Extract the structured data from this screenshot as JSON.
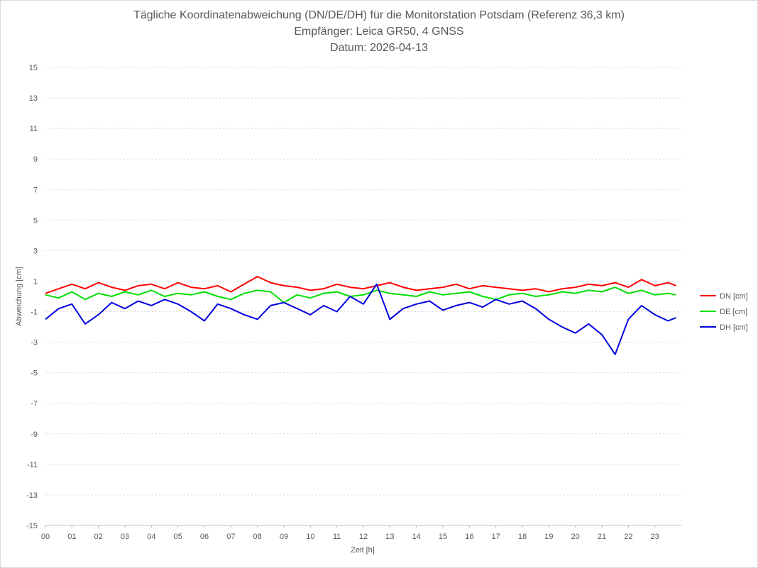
{
  "chart_data": {
    "type": "line",
    "title": "Tägliche Koordinatenabweichung (DN/DE/DH) für die Monitorstation Potsdam (Referenz 36,3 km)",
    "subtitle_1": "Empfänger: Leica GR50, 4 GNSS",
    "subtitle_2": "Datum: 2026-04-13",
    "xlabel": "Zeit [h]",
    "ylabel": "Abweichung [cm]",
    "ylim": [
      -15,
      15
    ],
    "xlim": [
      0,
      24
    ],
    "y_ticks": [
      "15",
      "13",
      "11",
      "9",
      "7",
      "5",
      "3",
      "1",
      "-1",
      "-3",
      "-5",
      "-7",
      "-9",
      "-11",
      "-13",
      "-15"
    ],
    "x_ticks": [
      "00",
      "01",
      "02",
      "03",
      "04",
      "05",
      "06",
      "07",
      "08",
      "09",
      "10",
      "11",
      "12",
      "13",
      "14",
      "15",
      "16",
      "17",
      "18",
      "19",
      "20",
      "21",
      "22",
      "23"
    ],
    "grid": true,
    "legend_position": "right",
    "x": [
      0.0,
      0.5,
      1.0,
      1.5,
      2.0,
      2.5,
      3.0,
      3.5,
      4.0,
      4.5,
      5.0,
      5.5,
      6.0,
      6.5,
      7.0,
      7.5,
      8.0,
      8.5,
      9.0,
      9.5,
      10.0,
      10.5,
      11.0,
      11.5,
      12.0,
      12.5,
      13.0,
      13.5,
      14.0,
      14.5,
      15.0,
      15.5,
      16.0,
      16.5,
      17.0,
      17.5,
      18.0,
      18.5,
      19.0,
      19.5,
      20.0,
      20.5,
      21.0,
      21.5,
      22.0,
      22.5,
      23.0,
      23.5,
      23.8
    ],
    "series": [
      {
        "name": "DN [cm]",
        "color": "#ff0000",
        "values": [
          0.2,
          0.5,
          0.8,
          0.5,
          0.9,
          0.6,
          0.4,
          0.7,
          0.8,
          0.5,
          0.9,
          0.6,
          0.5,
          0.7,
          0.3,
          0.8,
          1.3,
          0.9,
          0.7,
          0.6,
          0.4,
          0.5,
          0.8,
          0.6,
          0.5,
          0.7,
          0.9,
          0.6,
          0.4,
          0.5,
          0.6,
          0.8,
          0.5,
          0.7,
          0.6,
          0.5,
          0.4,
          0.5,
          0.3,
          0.5,
          0.6,
          0.8,
          0.7,
          0.9,
          0.6,
          1.1,
          0.7,
          0.9,
          0.7
        ]
      },
      {
        "name": "DE [cm]",
        "color": "#00e000",
        "values": [
          0.1,
          -0.1,
          0.3,
          -0.2,
          0.2,
          0.0,
          0.3,
          0.1,
          0.4,
          0.0,
          0.2,
          0.1,
          0.3,
          0.0,
          -0.2,
          0.2,
          0.4,
          0.3,
          -0.4,
          0.1,
          -0.1,
          0.2,
          0.3,
          0.0,
          0.1,
          0.4,
          0.2,
          0.1,
          0.0,
          0.3,
          0.1,
          0.2,
          0.3,
          0.0,
          -0.2,
          0.1,
          0.2,
          0.0,
          0.1,
          0.3,
          0.2,
          0.4,
          0.3,
          0.6,
          0.2,
          0.4,
          0.1,
          0.2,
          0.1
        ]
      },
      {
        "name": "DH [cm]",
        "color": "#0000e0",
        "values": [
          -1.5,
          -0.8,
          -0.5,
          -1.8,
          -1.2,
          -0.4,
          -0.8,
          -0.3,
          -0.6,
          -0.2,
          -0.5,
          -1.0,
          -1.6,
          -0.5,
          -0.8,
          -1.2,
          -1.5,
          -0.6,
          -0.4,
          -0.8,
          -1.2,
          -0.6,
          -1.0,
          0.0,
          -0.5,
          0.8,
          -1.5,
          -0.8,
          -0.5,
          -0.3,
          -0.9,
          -0.6,
          -0.4,
          -0.7,
          -0.2,
          -0.5,
          -0.3,
          -0.8,
          -1.5,
          -2.0,
          -2.4,
          -1.8,
          -2.5,
          -3.8,
          -1.5,
          -0.6,
          -1.2,
          -1.6,
          -1.4
        ]
      }
    ]
  }
}
